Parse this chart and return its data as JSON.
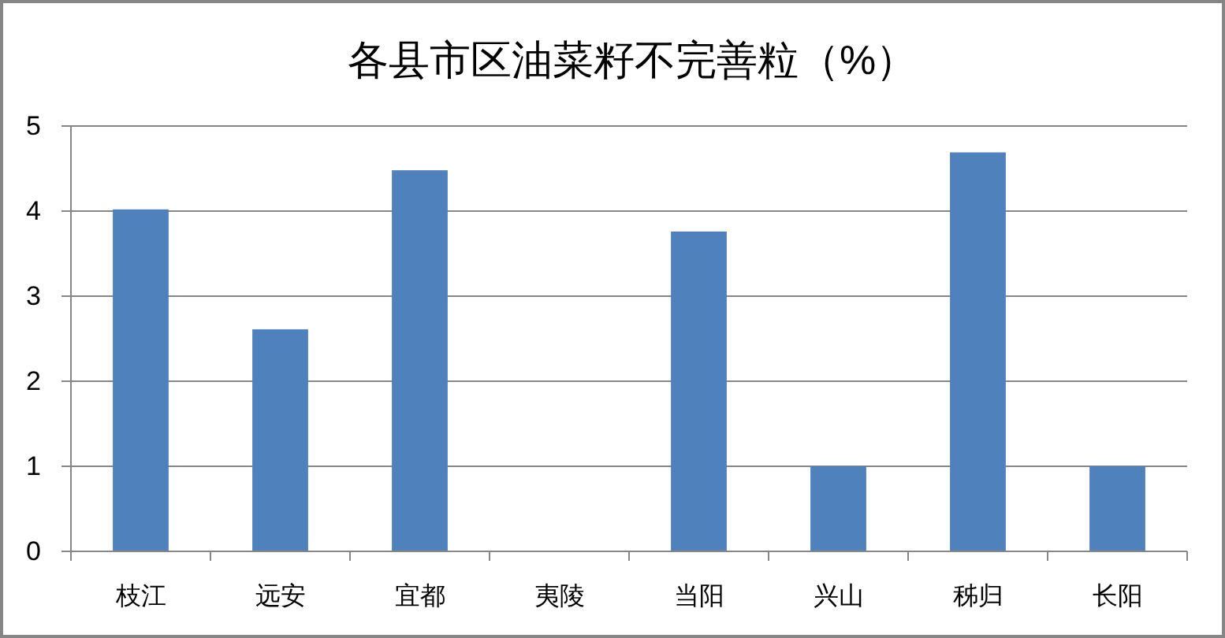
{
  "chart_data": {
    "type": "bar",
    "title": "各县市区油菜籽不完善粒（%）",
    "categories": [
      "枝江",
      "远安",
      "宜都",
      "夷陵",
      "当阳",
      "兴山",
      "秭归",
      "长阳"
    ],
    "values": [
      4.02,
      2.61,
      4.48,
      null,
      3.76,
      1,
      4.69,
      1
    ],
    "color": "#4f81bd",
    "ylim": [
      0,
      5
    ],
    "yticks": [
      0,
      1,
      2,
      3,
      4,
      5
    ],
    "grid": "y"
  }
}
